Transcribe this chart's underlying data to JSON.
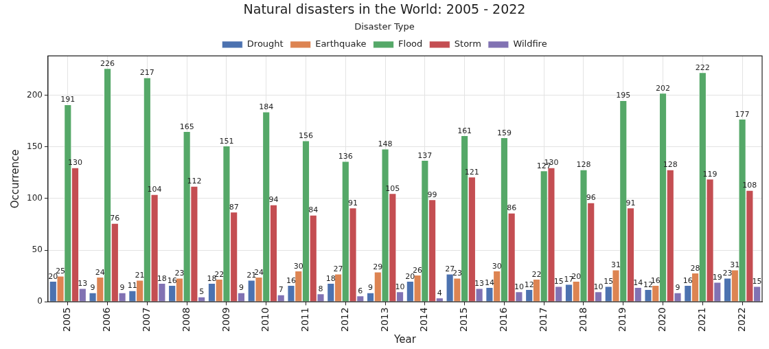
{
  "chart_data": {
    "type": "bar",
    "title": "Natural disasters in the World: 2005 - 2022",
    "xlabel": "Year",
    "ylabel": "Occurrence",
    "legend_title": "Disaster Type",
    "categories": [
      "2005",
      "2006",
      "2007",
      "2008",
      "2009",
      "2010",
      "2011",
      "2012",
      "2013",
      "2014",
      "2015",
      "2016",
      "2017",
      "2018",
      "2019",
      "2020",
      "2021",
      "2022"
    ],
    "series": [
      {
        "name": "Drought",
        "color": "#4c72b0",
        "values": [
          20,
          9,
          11,
          16,
          18,
          21,
          16,
          18,
          9,
          20,
          27,
          14,
          12,
          17,
          15,
          12,
          16,
          23
        ]
      },
      {
        "name": "Earthquake",
        "color": "#dd8452",
        "values": [
          25,
          24,
          21,
          23,
          22,
          24,
          30,
          27,
          29,
          26,
          23,
          30,
          22,
          20,
          31,
          16,
          28,
          31
        ]
      },
      {
        "name": "Flood",
        "color": "#55a868",
        "values": [
          191,
          226,
          217,
          165,
          151,
          184,
          156,
          136,
          148,
          137,
          161,
          159,
          127,
          128,
          195,
          202,
          222,
          177
        ]
      },
      {
        "name": "Storm",
        "color": "#c44e52",
        "values": [
          130,
          76,
          104,
          112,
          87,
          94,
          84,
          91,
          105,
          99,
          121,
          86,
          130,
          96,
          91,
          128,
          119,
          108
        ]
      },
      {
        "name": "Wildfire",
        "color": "#8172b3",
        "values": [
          13,
          9,
          18,
          5,
          9,
          7,
          8,
          6,
          10,
          4,
          13,
          10,
          15,
          10,
          14,
          9,
          19,
          15
        ]
      }
    ],
    "ylim": [
      0,
      238
    ],
    "yticks": [
      0,
      50,
      100,
      150,
      200
    ],
    "grid": true,
    "legend": "top",
    "data_labels": true
  }
}
